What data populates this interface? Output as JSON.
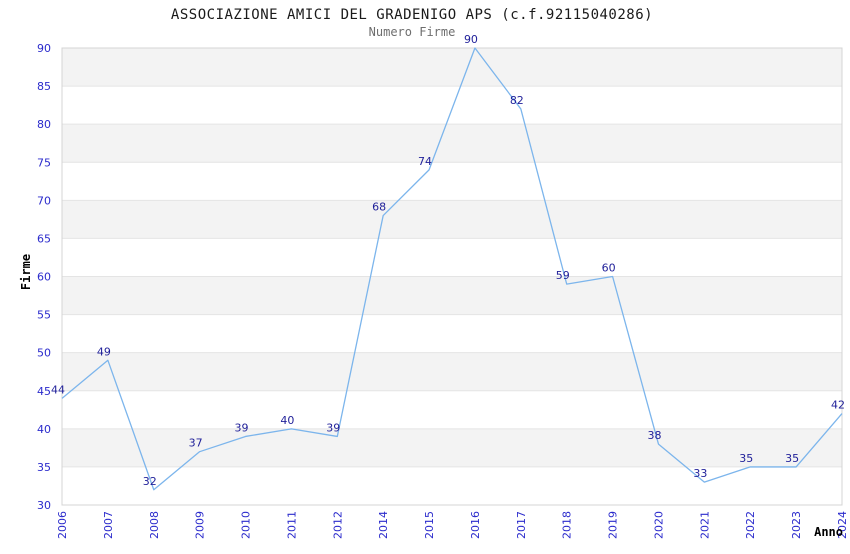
{
  "chart_data": {
    "type": "line",
    "title": "ASSOCIAZIONE AMICI DEL GRADENIGO APS (c.f.92115040286)",
    "subtitle": "Numero Firme",
    "xlabel": "Anno",
    "ylabel": "Firme",
    "categories": [
      "2006",
      "2007",
      "2008",
      "2009",
      "2010",
      "2011",
      "2012",
      "2014",
      "2015",
      "2016",
      "2017",
      "2018",
      "2019",
      "2020",
      "2021",
      "2022",
      "2023",
      "2024"
    ],
    "values": [
      44,
      49,
      32,
      37,
      39,
      40,
      39,
      68,
      74,
      90,
      82,
      59,
      60,
      38,
      33,
      35,
      35,
      42
    ],
    "ylim": [
      30,
      90
    ],
    "yticks": [
      30,
      35,
      40,
      45,
      50,
      55,
      60,
      65,
      70,
      75,
      80,
      85,
      90
    ],
    "grid": true,
    "legend_position": "none",
    "band_pattern": "alternating horizontal stripes, gray on 35-40, 45-50, 55-60, 65-70, 75-80, 85-90",
    "colors": {
      "line": "#7cb5ec",
      "data_label": "#1f1f99",
      "tick_label": "#2b2bcc",
      "grid_line": "#e4e4e4",
      "band_fill": "#f3f3f3",
      "plot_border": "#d4d4d4",
      "title": "#1a1a1a",
      "subtitle": "#6e6e6e",
      "axis_title": "#000000",
      "background": "#ffffff"
    }
  }
}
